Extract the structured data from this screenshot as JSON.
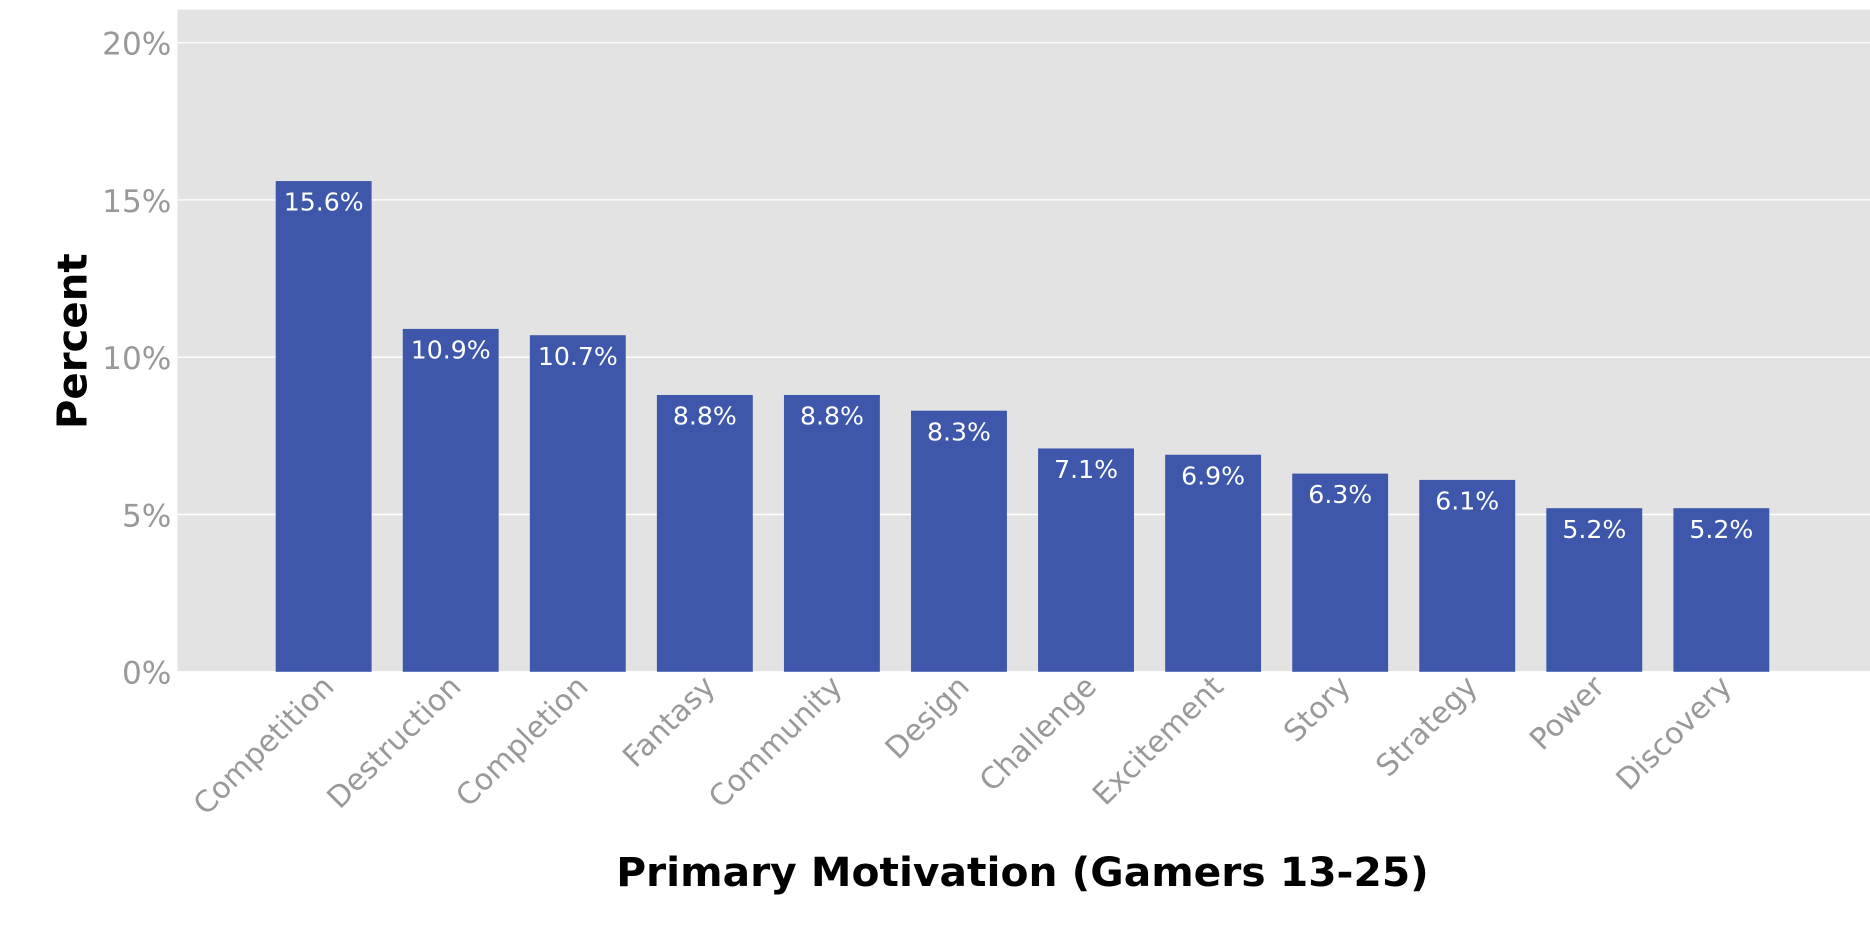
{
  "chart_data": {
    "type": "bar",
    "title": "",
    "xlabel": "Primary Motivation (Gamers 13-25)",
    "ylabel": "Percent",
    "ylim": [
      0,
      20
    ],
    "yticks": [
      "0%",
      "5%",
      "10%",
      "15%",
      "20%"
    ],
    "ytick_values": [
      0,
      5,
      10,
      15,
      20
    ],
    "grid": true,
    "categories": [
      "Competition",
      "Destruction",
      "Completion",
      "Fantasy",
      "Community",
      "Design",
      "Challenge",
      "Excitement",
      "Story",
      "Strategy",
      "Power",
      "Discovery"
    ],
    "values": [
      15.6,
      10.9,
      10.7,
      8.8,
      8.8,
      8.3,
      7.1,
      6.9,
      6.3,
      6.1,
      5.2,
      5.2
    ],
    "data_labels": [
      "15.6%",
      "10.9%",
      "10.7%",
      "8.8%",
      "8.8%",
      "8.3%",
      "7.1%",
      "6.9%",
      "6.3%",
      "6.1%",
      "5.2%",
      "5.2%"
    ],
    "colors": {
      "bar": "#3E57AB",
      "panel": "#E3E3E3",
      "grid": "#FFFFFF",
      "tick_text": "#999999",
      "label_text": "#FFFFFF",
      "axis_title": "#000000"
    }
  }
}
